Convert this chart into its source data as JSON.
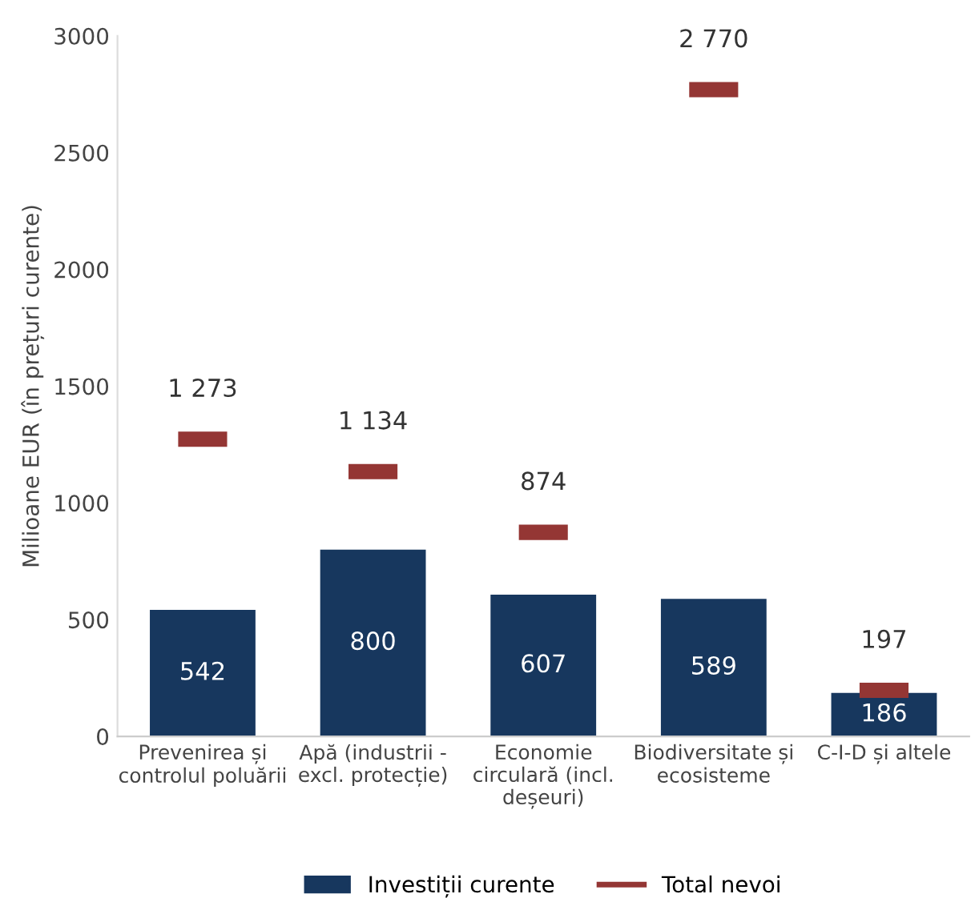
{
  "chart_data": {
    "type": "bar",
    "ylabel": "Milioane EUR (în prețuri curente)",
    "categories": [
      "Prevenirea și\ncontrolul poluării",
      "Apă (industrii -\nexcl. protecție)",
      "Economie\ncirculară (incl.\ndeșeuri)",
      "Biodiversitate și\necosisteme",
      "C-I-D și altele"
    ],
    "series": [
      {
        "name": "Investiții curente",
        "type": "bar",
        "color": "#17375e",
        "values": [
          542,
          800,
          607,
          589,
          186
        ]
      },
      {
        "name": "Total nevoi",
        "type": "scatter",
        "color": "#943634",
        "values": [
          1273,
          1134,
          874,
          2770,
          197
        ]
      }
    ],
    "data_labels": true,
    "ylim": [
      0,
      3000
    ],
    "yticks": [
      0,
      500,
      1000,
      1500,
      2000,
      2500,
      3000
    ],
    "legend": "bottom",
    "grid": false
  }
}
